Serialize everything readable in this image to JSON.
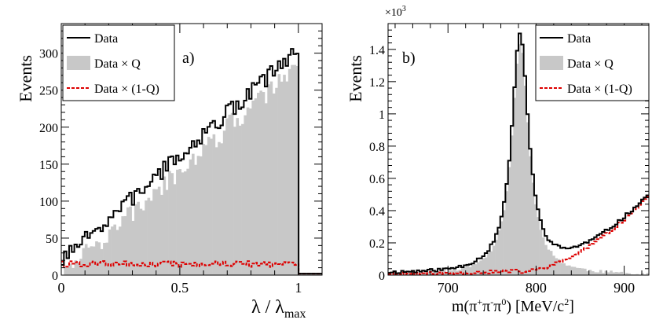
{
  "colors": {
    "data": "#000000",
    "q": "#c8c8c8",
    "bg": "#dd0000"
  },
  "chart_data": [
    {
      "type": "histogram",
      "panel_label": "a)",
      "ylabel": "Events",
      "xlabel_main": "λ / λ",
      "xlabel_sub": "max",
      "xlim": [
        0,
        1.1
      ],
      "ylim": [
        0,
        340
      ],
      "x_ticks": [
        0,
        0.5,
        1
      ],
      "x_tick_labels": [
        "0",
        "0.5",
        "1"
      ],
      "y_ticks": [
        0,
        50,
        100,
        150,
        200,
        250,
        300
      ],
      "y_tick_labels": [
        "0",
        "50",
        "100",
        "150",
        "200",
        "250",
        "300"
      ],
      "legend": [
        "Data",
        "Data × Q",
        "Data × (1-Q)"
      ],
      "shape": {
        "kind": "ramp",
        "x_start": 0,
        "x_end": 1.0,
        "y_start": 18,
        "y_end": 305,
        "q_start": 3,
        "q_end": 290,
        "bg_level": 15,
        "bins": 100,
        "seed": 7
      }
    },
    {
      "type": "histogram",
      "panel_label": "b)",
      "ylabel": "Events",
      "multiplier_base": "×10",
      "multiplier_exp": "3",
      "xlabel_main": "m(π",
      "xlabel_sup1": "+",
      "xlabel_mid1": "π",
      "xlabel_sup2": "-",
      "xlabel_mid2": "π",
      "xlabel_sup3": "0",
      "xlabel_mid3": ") [MeV/c",
      "xlabel_sup4": "2",
      "xlabel_end": "]",
      "xlim": [
        632,
        928
      ],
      "ylim": [
        0,
        1.56
      ],
      "x_ticks": [
        700,
        800,
        900
      ],
      "x_tick_labels": [
        "700",
        "800",
        "900"
      ],
      "y_ticks": [
        0,
        0.2,
        0.4,
        0.6,
        0.8,
        1,
        1.2,
        1.4
      ],
      "y_tick_labels": [
        "0",
        "0.2",
        "0.4",
        "0.6",
        "0.8",
        "1",
        "1.2",
        "1.4"
      ],
      "legend": [
        "Data",
        "Data × Q",
        "Data × (1-Q)"
      ],
      "shape": {
        "kind": "peak",
        "peak_center": 782,
        "peak_height": 1.48,
        "peak_width": 11,
        "bins": 100,
        "seed": 11
      }
    }
  ]
}
